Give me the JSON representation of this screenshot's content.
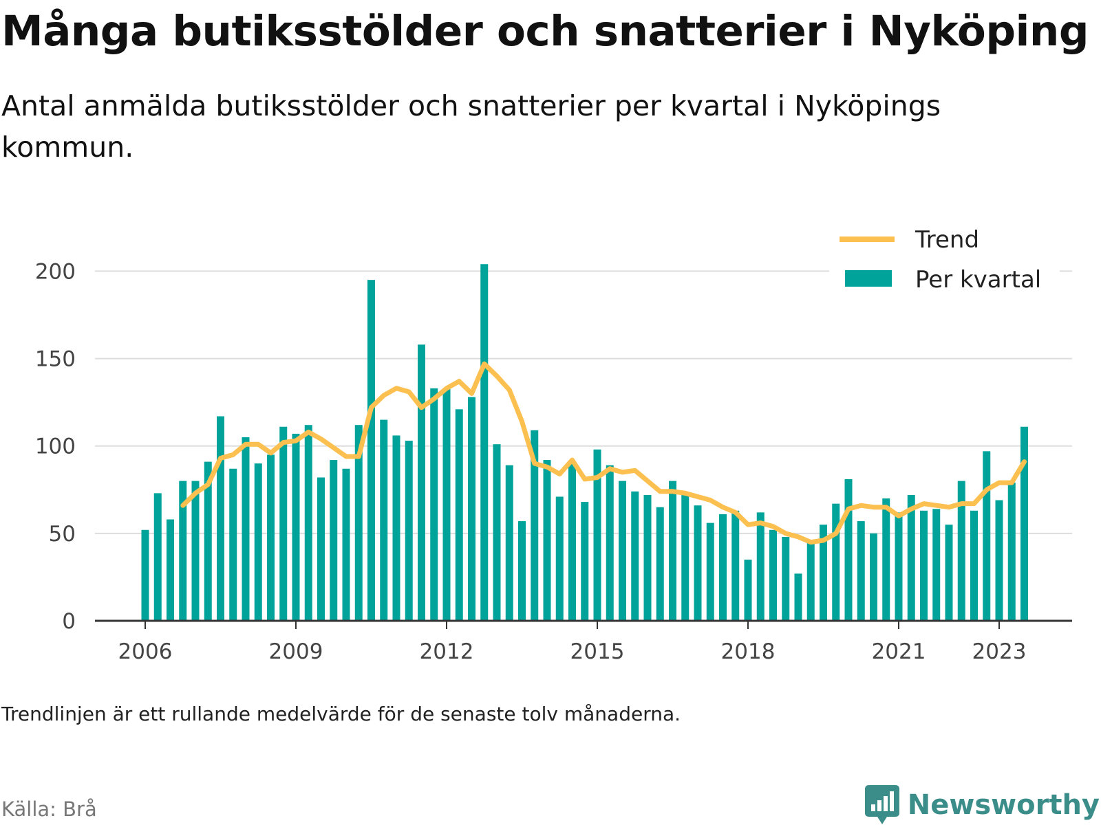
{
  "title": "Många butiksstölder och snatterier i Nyköping",
  "subtitle": "Antal anmälda butiksstölder och snatterier per kvartal i Nyköpings kommun.",
  "note": "Trendlinjen är ett rullande medelvärde för de senaste tolv månaderna.",
  "source": "Källa: Brå",
  "brand": "Newsworthy",
  "colors": {
    "bar": "#00a39a",
    "trend": "#fcc050",
    "grid": "#dddddd",
    "axis": "#333333",
    "brand": "#3b8d8a"
  },
  "chart_data": {
    "type": "bar",
    "x_start": "2006-Q1",
    "xticks": [
      "2006",
      "2009",
      "2012",
      "2015",
      "2018",
      "2021",
      "2023"
    ],
    "yticks": [
      0,
      50,
      100,
      150,
      200
    ],
    "ylim": [
      0,
      210
    ],
    "grid": true,
    "legend_position": "top-right",
    "series": [
      {
        "name": "Per kvartal",
        "type": "bar",
        "values": [
          52,
          73,
          58,
          80,
          80,
          91,
          117,
          87,
          105,
          90,
          95,
          111,
          107,
          112,
          82,
          92,
          87,
          112,
          195,
          115,
          106,
          103,
          158,
          133,
          133,
          121,
          128,
          204,
          101,
          89,
          57,
          109,
          92,
          71,
          90,
          68,
          98,
          89,
          80,
          74,
          72,
          65,
          80,
          73,
          66,
          56,
          61,
          63,
          35,
          62,
          52,
          48,
          27,
          46,
          55,
          67,
          81,
          57,
          50,
          70,
          62,
          72,
          63,
          64,
          55,
          80,
          63,
          97,
          69,
          79,
          111
        ]
      },
      {
        "name": "Trend",
        "type": "line",
        "values": [
          null,
          null,
          null,
          66,
          73,
          78,
          93,
          95,
          101,
          101,
          96,
          102,
          103,
          108,
          104,
          99,
          94,
          94,
          122,
          129,
          133,
          131,
          122,
          127,
          133,
          137,
          130,
          147,
          140,
          132,
          114,
          90,
          88,
          84,
          92,
          81,
          82,
          87,
          85,
          86,
          80,
          74,
          74,
          73,
          71,
          69,
          65,
          62,
          55,
          56,
          54,
          50,
          48,
          45,
          46,
          50,
          64,
          66,
          65,
          65,
          60,
          64,
          67,
          66,
          65,
          67,
          67,
          75,
          79,
          79,
          91
        ]
      }
    ]
  }
}
